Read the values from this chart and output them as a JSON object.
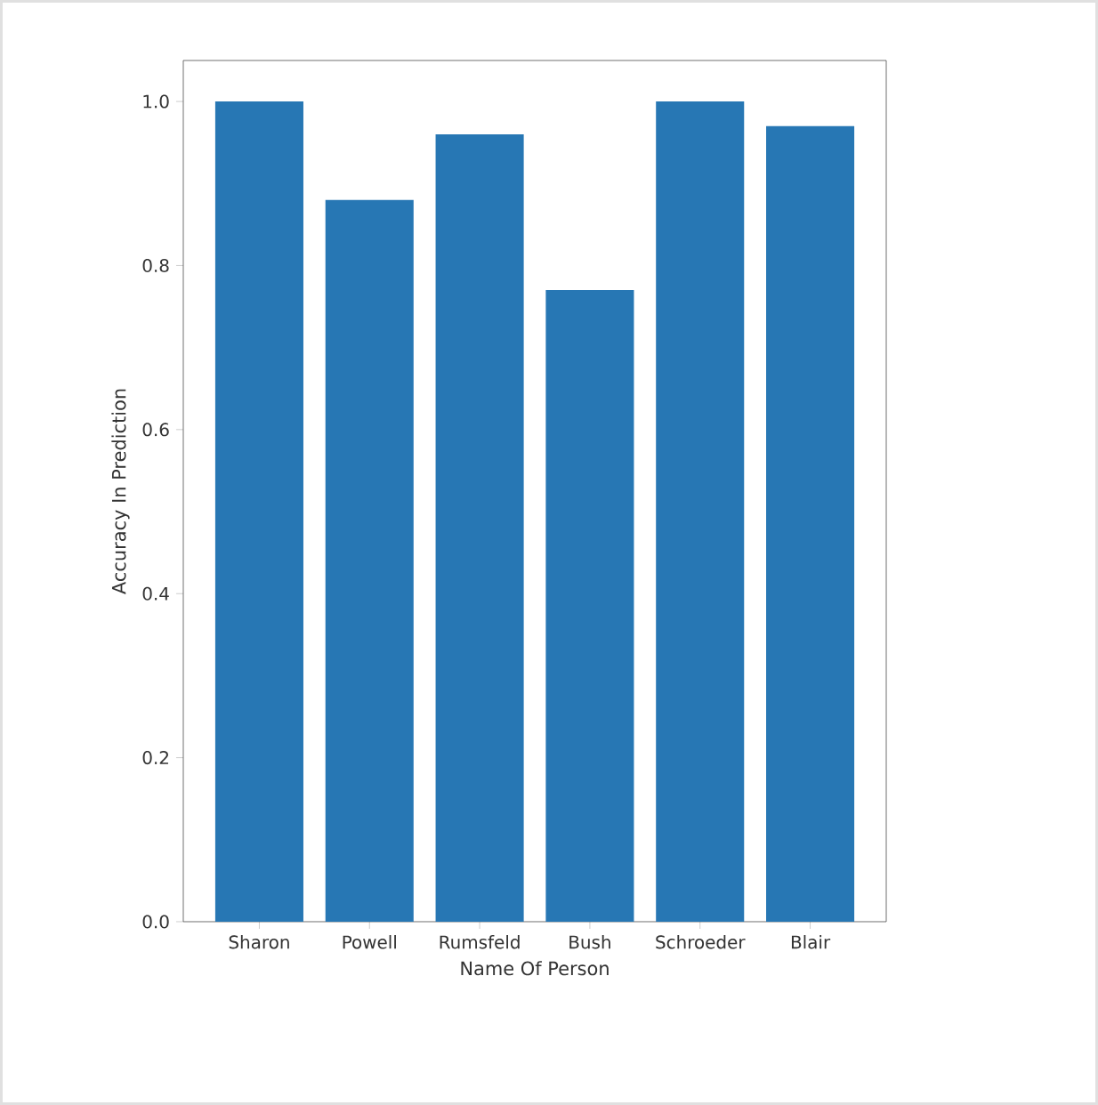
{
  "chart_data": {
    "type": "bar",
    "xlabel": "Name Of Person",
    "ylabel": "Accuracy In Prediction",
    "categories": [
      "Sharon",
      "Powell",
      "Rumsfeld",
      "Bush",
      "Schroeder",
      "Blair"
    ],
    "values": [
      1.0,
      0.88,
      0.96,
      0.77,
      1.0,
      0.97
    ],
    "color": "#2777b4",
    "ylim": [
      0,
      1.05
    ],
    "yticks": [
      {
        "value": 0,
        "label": "0.0"
      },
      {
        "value": 0.2,
        "label": "0.2"
      },
      {
        "value": 0.4,
        "label": "0.4"
      },
      {
        "value": 0.6,
        "label": "0.6"
      },
      {
        "value": 0.8,
        "label": "0.8"
      },
      {
        "value": 1.0,
        "label": "1.0"
      }
    ]
  }
}
